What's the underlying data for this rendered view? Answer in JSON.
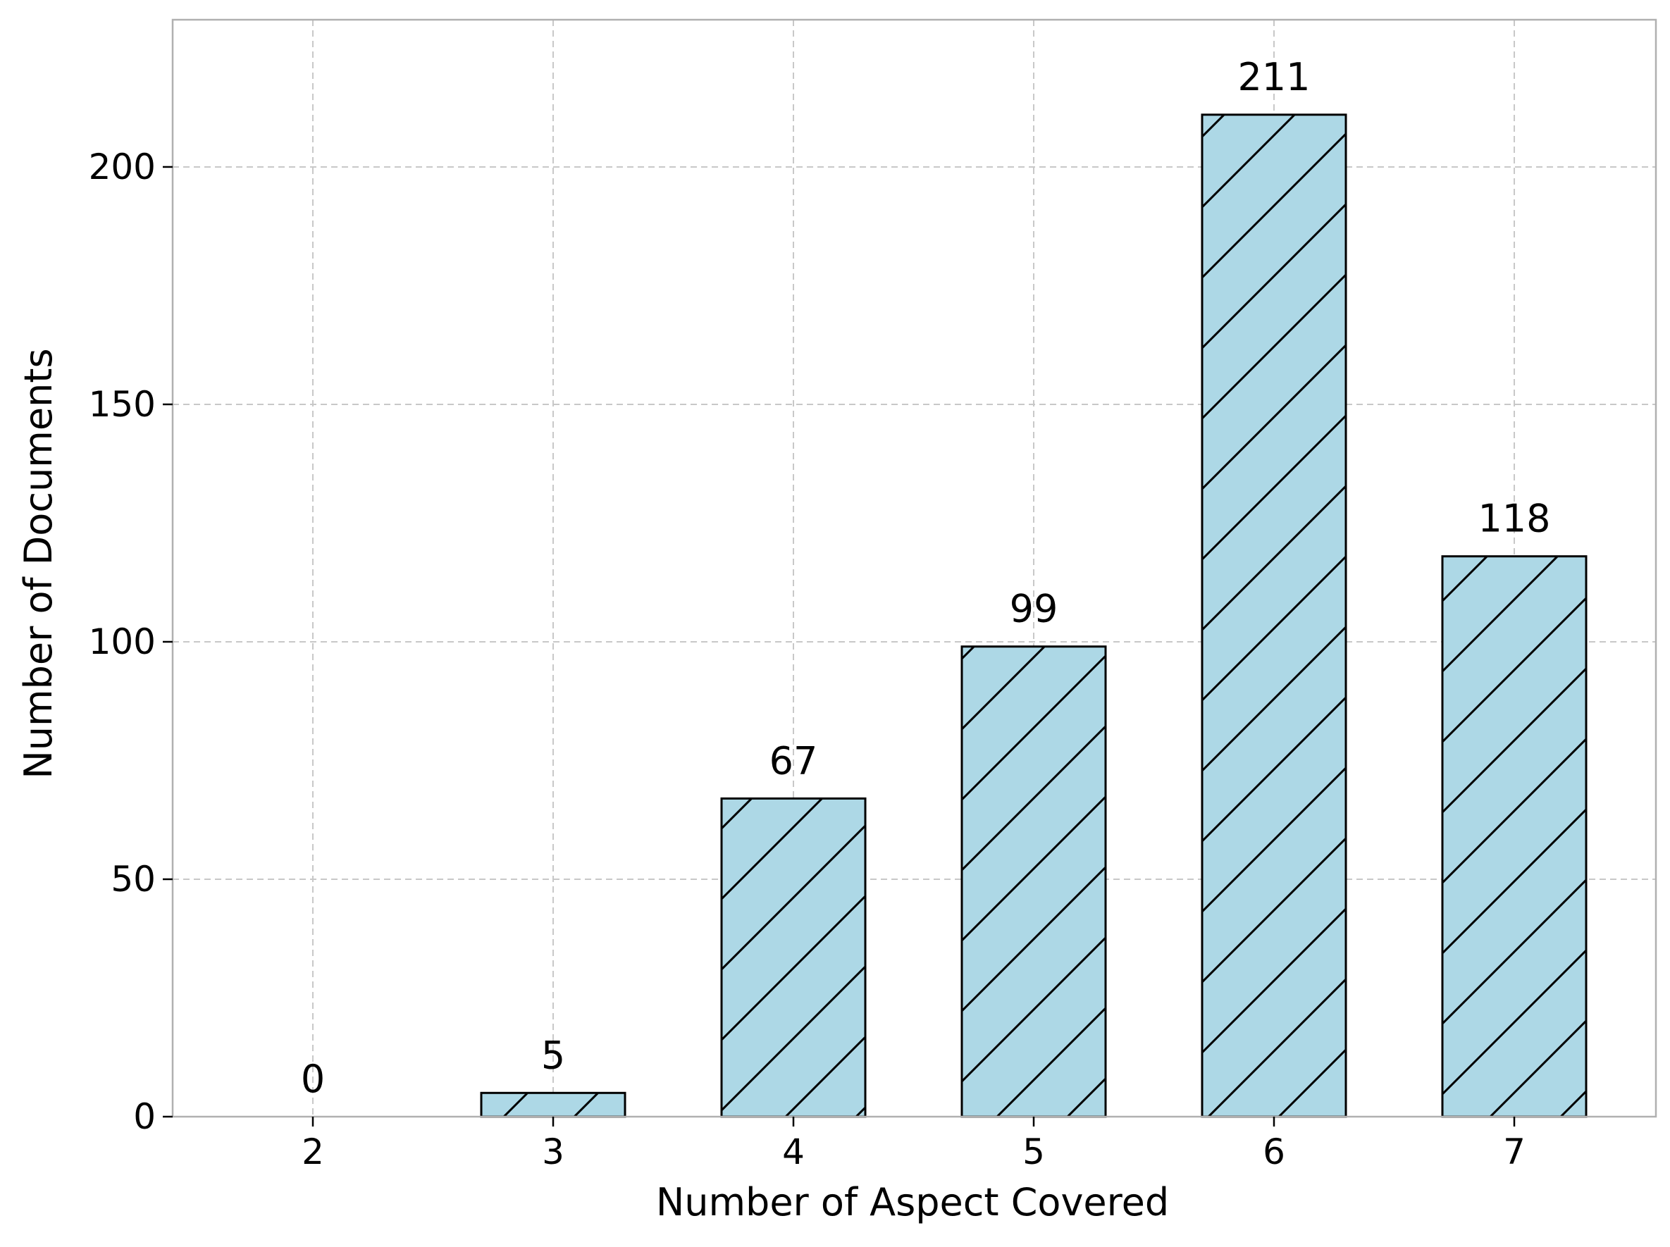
{
  "chart_data": {
    "type": "bar",
    "title": "",
    "xlabel": "Number of Aspect Covered",
    "ylabel": "Number of Documents",
    "categories": [
      "2",
      "3",
      "4",
      "5",
      "6",
      "7"
    ],
    "values": [
      0,
      5,
      67,
      99,
      211,
      118
    ],
    "data_labels": [
      "0",
      "5",
      "67",
      "99",
      "211",
      "118"
    ],
    "ylim": [
      0,
      231
    ],
    "yticks": [
      0,
      50,
      100,
      150,
      200
    ],
    "ytick_labels": [
      "0",
      "50",
      "100",
      "150",
      "200"
    ],
    "grid": true,
    "grid_style": "dashed",
    "legend": "none",
    "bar_hatch": "diagonal",
    "colors": {
      "bar_fill": "#add8e6",
      "bar_edge": "#000000",
      "hatch": "#000000",
      "grid": "#c8c8c8",
      "axis": "#b0b0b0"
    }
  }
}
